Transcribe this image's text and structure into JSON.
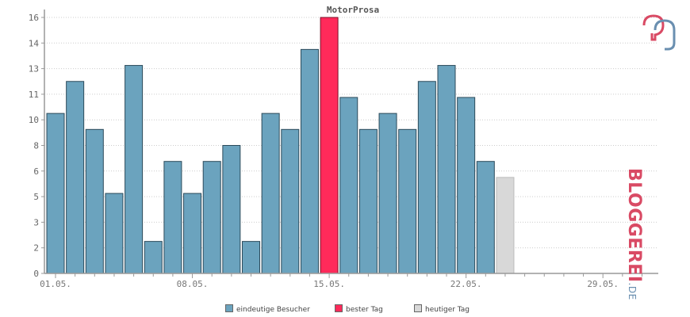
{
  "chart_data": {
    "type": "bar",
    "title": "MotorProsa",
    "y_ticks": [
      "0",
      "2",
      "3",
      "5",
      "6",
      "8",
      "10",
      "11",
      "13",
      "14",
      "16"
    ],
    "ylim": [
      0,
      16
    ],
    "x_ticks": [
      "01.05.",
      "08.05.",
      "15.05.",
      "22.05.",
      "29.05."
    ],
    "values": [
      10,
      12,
      9,
      5,
      13,
      2,
      7,
      5,
      7,
      8,
      2,
      10,
      9,
      14,
      16,
      11,
      9,
      10,
      9,
      12,
      13,
      11,
      7,
      6
    ],
    "best_index": 14,
    "today_index": 23,
    "total_days": 31,
    "grid": true,
    "colors": {
      "bar": "#6ba3be",
      "best": "#ff2a5a",
      "today": "#d8d8d8",
      "axis": "#999999",
      "grid": "#cccccc"
    }
  },
  "legend": {
    "visitors": {
      "label": "eindeutige Besucher",
      "color": "#6ba3be"
    },
    "best": {
      "label": "bester Tag",
      "color": "#ff2a5a"
    },
    "today": {
      "label": "heutiger Tag",
      "color": "#d8d8d8"
    }
  },
  "logo": {
    "text": "BLOGGEREI",
    "suffix": ".DE"
  }
}
